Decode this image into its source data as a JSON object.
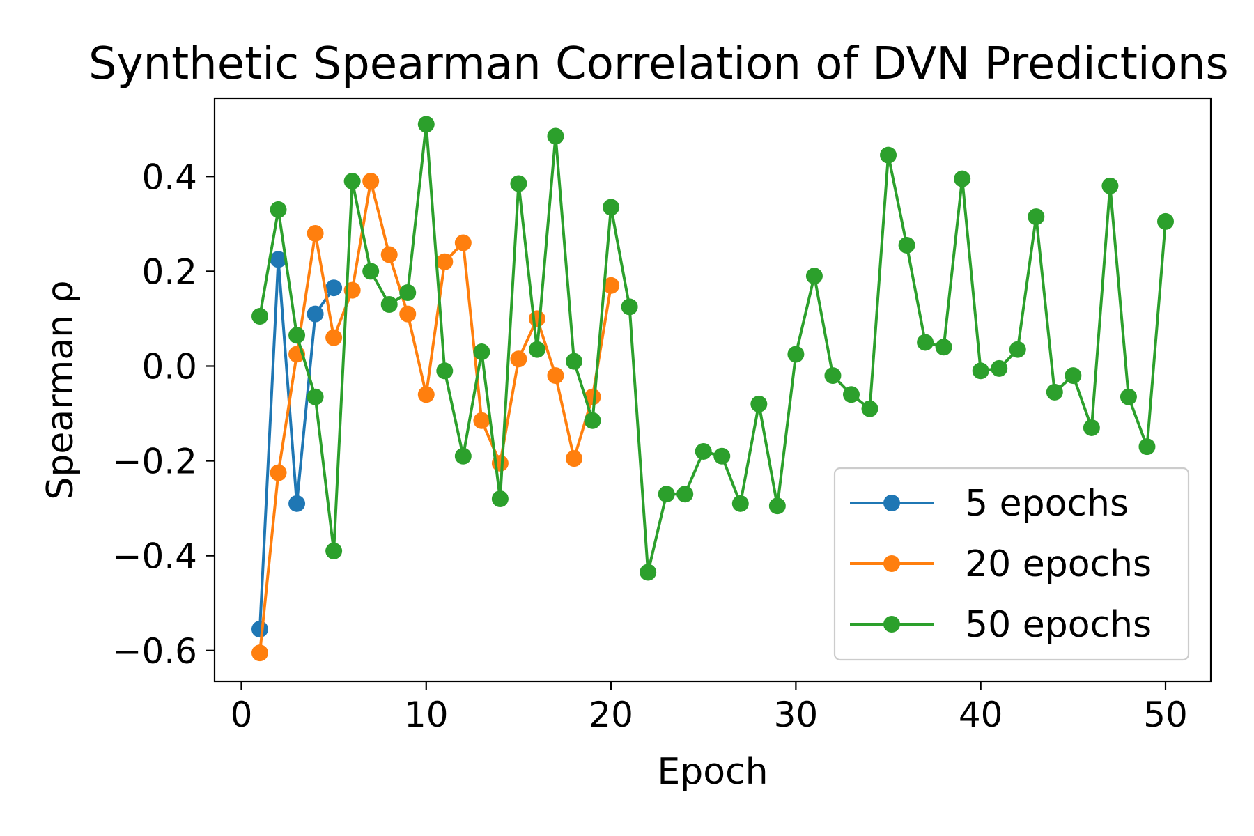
{
  "chart_data": {
    "type": "line",
    "title": "Synthetic Spearman Correlation of DVN Predictions",
    "xlabel": "Epoch",
    "ylabel": "Spearman ρ",
    "xlim": [
      -1.45,
      52.45
    ],
    "ylim": [
      -0.665,
      0.565
    ],
    "xticks": [
      0,
      10,
      20,
      30,
      40,
      50
    ],
    "yticks": [
      -0.6,
      -0.4,
      -0.2,
      0.0,
      0.2,
      0.4
    ],
    "yticklabels": [
      "−0.6",
      "−0.4",
      "−0.2",
      "0.0",
      "0.2",
      "0.4"
    ],
    "grid": false,
    "legend_position": "lower right",
    "series": [
      {
        "name": "5 epochs",
        "color": "#1f77b4",
        "x": [
          1,
          2,
          3,
          4,
          5
        ],
        "y": [
          -0.555,
          0.225,
          -0.29,
          0.11,
          0.165
        ]
      },
      {
        "name": "20 epochs",
        "color": "#ff7f0e",
        "x": [
          1,
          2,
          3,
          4,
          5,
          6,
          7,
          8,
          9,
          10,
          11,
          12,
          13,
          14,
          15,
          16,
          17,
          18,
          19,
          20
        ],
        "y": [
          -0.605,
          -0.225,
          0.025,
          0.28,
          0.06,
          0.16,
          0.39,
          0.235,
          0.11,
          -0.06,
          0.22,
          0.26,
          -0.115,
          -0.205,
          0.015,
          0.1,
          -0.02,
          -0.195,
          -0.065,
          0.17
        ]
      },
      {
        "name": "50 epochs",
        "color": "#2ca02c",
        "x": [
          1,
          2,
          3,
          4,
          5,
          6,
          7,
          8,
          9,
          10,
          11,
          12,
          13,
          14,
          15,
          16,
          17,
          18,
          19,
          20,
          21,
          22,
          23,
          24,
          25,
          26,
          27,
          28,
          29,
          30,
          31,
          32,
          33,
          34,
          35,
          36,
          37,
          38,
          39,
          40,
          41,
          42,
          43,
          44,
          45,
          46,
          47,
          48,
          49,
          50
        ],
        "y": [
          0.105,
          0.33,
          0.065,
          -0.065,
          -0.39,
          0.39,
          0.2,
          0.13,
          0.155,
          0.51,
          -0.01,
          -0.19,
          0.03,
          -0.28,
          0.385,
          0.035,
          0.485,
          0.01,
          -0.115,
          0.335,
          0.125,
          -0.435,
          -0.27,
          -0.27,
          -0.18,
          -0.19,
          -0.29,
          -0.08,
          -0.295,
          0.025,
          0.19,
          -0.02,
          -0.06,
          -0.09,
          0.445,
          0.255,
          0.05,
          0.04,
          0.395,
          -0.01,
          -0.005,
          0.035,
          0.315,
          -0.055,
          -0.02,
          -0.13,
          0.38,
          -0.065,
          -0.17,
          0.305
        ]
      }
    ]
  }
}
